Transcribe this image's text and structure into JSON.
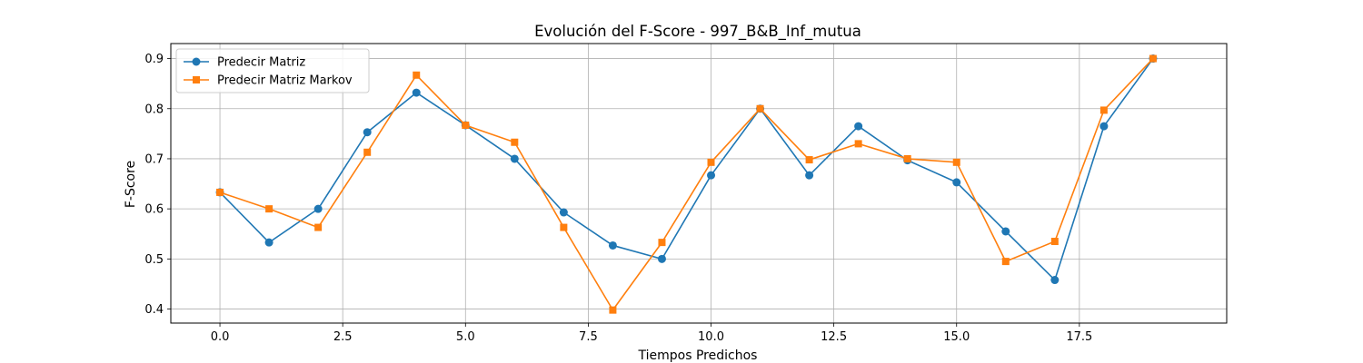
{
  "chart_data": {
    "type": "line",
    "title": "Evolución del F-Score - 997_B&B_Inf_mutua",
    "xlabel": "Tiempos Predichos",
    "ylabel": "F-Score",
    "xlim": [
      -1,
      20.5
    ],
    "ylim": [
      0.372,
      0.93
    ],
    "xticks": [
      0,
      2.5,
      5,
      7.5,
      10,
      12.5,
      15,
      17.5
    ],
    "xtick_labels": [
      "0.0",
      "2.5",
      "5.0",
      "7.5",
      "10.0",
      "12.5",
      "15.0",
      "17.5"
    ],
    "yticks": [
      0.4,
      0.5,
      0.6,
      0.7,
      0.8,
      0.9
    ],
    "ytick_labels": [
      "0.4",
      "0.5",
      "0.6",
      "0.7",
      "0.8",
      "0.9"
    ],
    "grid": true,
    "legend_position": "top-left",
    "x": [
      0,
      1,
      2,
      3,
      4,
      5,
      6,
      7,
      8,
      9,
      10,
      11,
      12,
      13,
      14,
      15,
      16,
      17,
      18,
      19
    ],
    "series": [
      {
        "name": "Predecir Matriz",
        "color": "#1f77b4",
        "marker": "circle",
        "values": [
          0.633,
          0.533,
          0.6,
          0.753,
          0.832,
          0.767,
          0.7,
          0.593,
          0.527,
          0.5,
          0.667,
          0.8,
          0.667,
          0.765,
          0.697,
          0.653,
          0.555,
          0.458,
          0.765,
          0.9
        ]
      },
      {
        "name": "Predecir Matriz Markov",
        "color": "#ff7f0e",
        "marker": "square",
        "values": [
          0.633,
          0.6,
          0.563,
          0.713,
          0.867,
          0.767,
          0.733,
          0.563,
          0.398,
          0.533,
          0.693,
          0.8,
          0.698,
          0.73,
          0.7,
          0.693,
          0.495,
          0.535,
          0.797,
          0.9
        ]
      }
    ]
  }
}
